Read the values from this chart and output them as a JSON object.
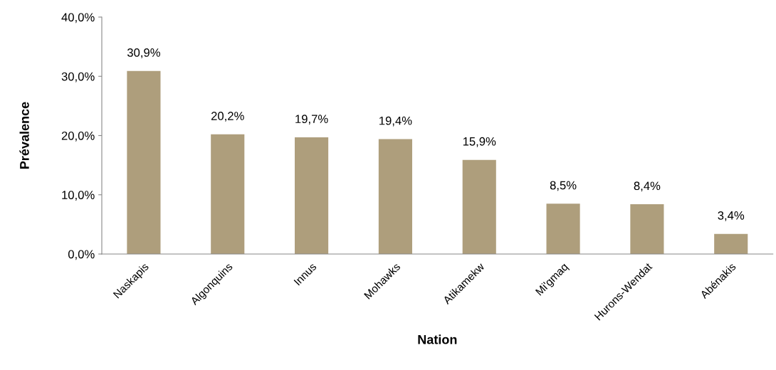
{
  "chart_data": {
    "type": "bar",
    "xlabel": "Nation",
    "ylabel": "Prévalence",
    "categories": [
      "Naskapis",
      "Algonquins",
      "Innus",
      "Mohawks",
      "Atikamekw",
      "Mi'gmaq",
      "Hurons-Wendat",
      "Abénakis"
    ],
    "values": [
      30.9,
      20.2,
      19.7,
      19.4,
      15.9,
      8.5,
      8.4,
      3.4
    ],
    "value_labels": [
      "30,9%",
      "20,2%",
      "19,7%",
      "19,4%",
      "15,9%",
      "8,5%",
      "8,4%",
      "3,4%"
    ],
    "color": "#ae9e7c",
    "ylim": [
      0,
      40
    ],
    "yticks": [
      {
        "value": 0,
        "label": "0,0%"
      },
      {
        "value": 10,
        "label": "10,0%"
      },
      {
        "value": 20,
        "label": "20,0%"
      },
      {
        "value": 30,
        "label": "30,0%"
      },
      {
        "value": 40,
        "label": "40,0%"
      }
    ],
    "grid": false
  }
}
